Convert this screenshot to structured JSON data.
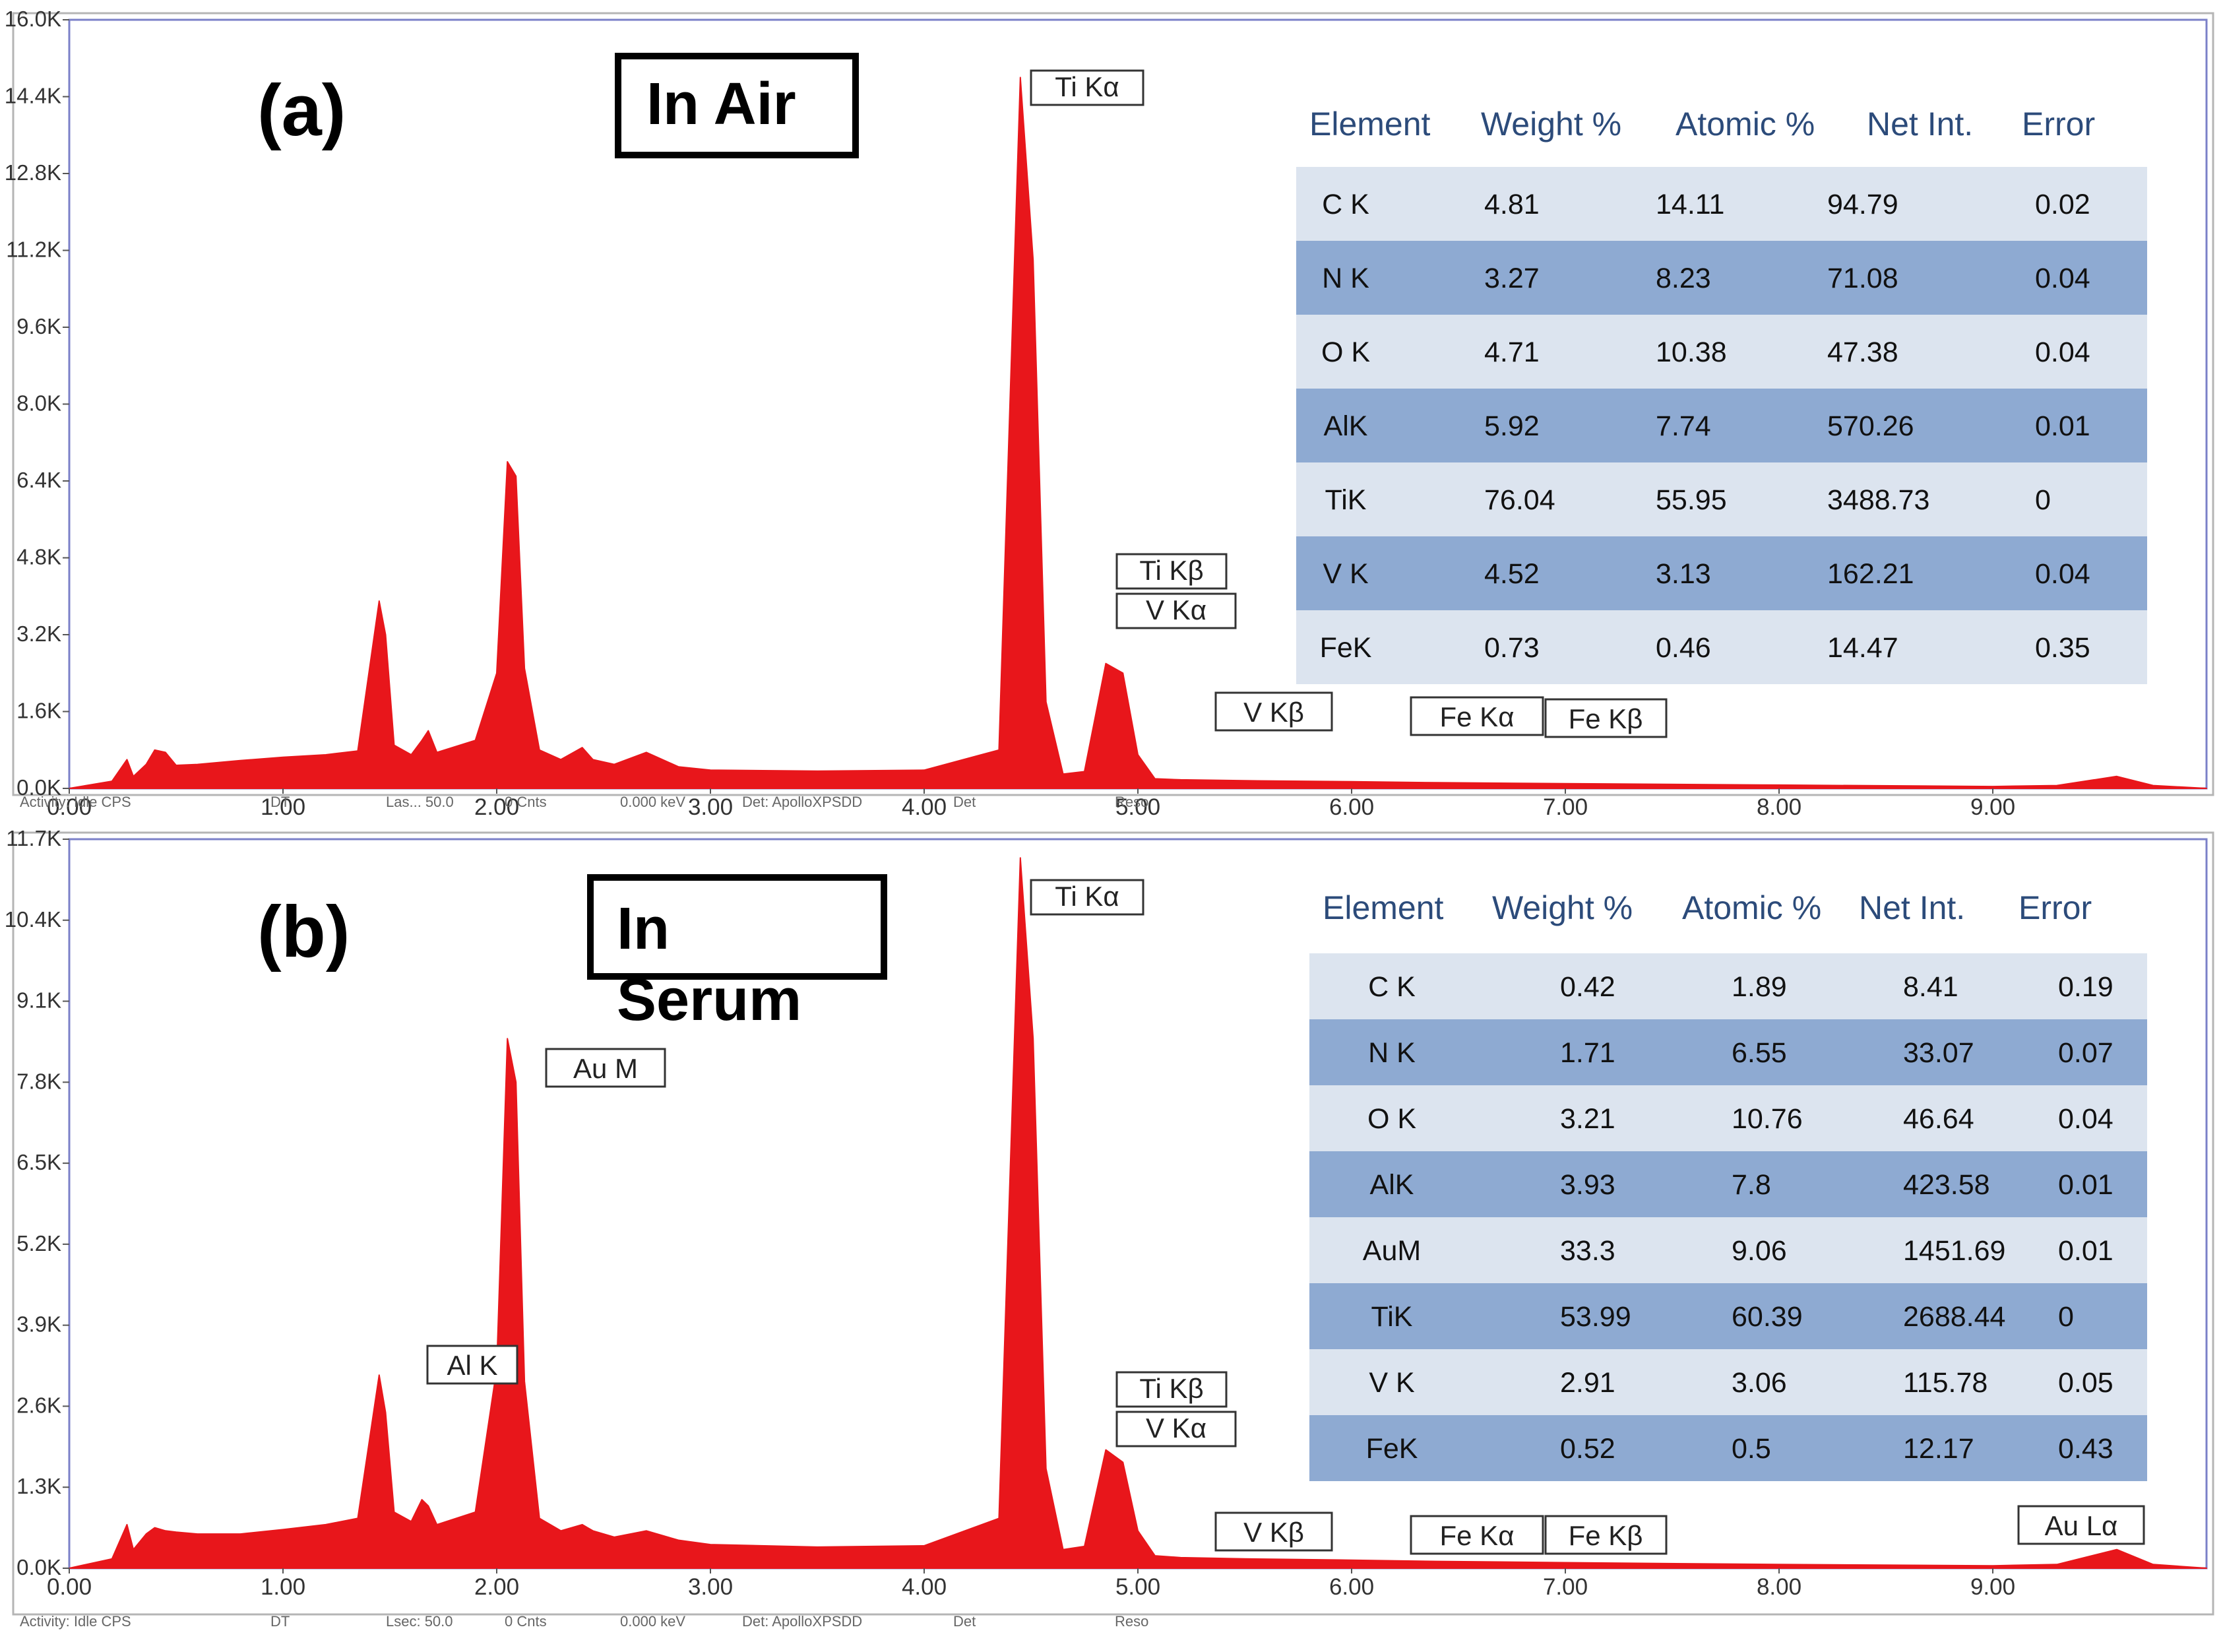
{
  "panels": [
    {
      "id": "a",
      "panel_label": "(a)",
      "condition_label": "In Air",
      "axis_ticks_y": [
        "0.0K",
        "1.6K",
        "3.2K",
        "4.8K",
        "6.4K",
        "8.0K",
        "9.6K",
        "11.2K",
        "12.8K",
        "14.4K",
        "16.0K"
      ],
      "axis_ticks_x": [
        "0.00",
        "1.00",
        "2.00",
        "3.00",
        "4.00",
        "5.00",
        "6.00",
        "7.00",
        "8.00",
        "9.00"
      ],
      "status_bar": [
        "Activity: Idle CPS",
        "DT",
        "Las... 50.0",
        "0 Cnts",
        "0.000 keV",
        "Det: ApolloXPSDD",
        "Det",
        "Reso"
      ],
      "peak_labels": [
        "Ti Kα",
        "Ti Kβ",
        "V  Kα",
        "V  Kβ",
        "Fe Kα",
        "Fe Kβ"
      ],
      "table": {
        "headers": [
          "Element",
          "Weight %",
          "Atomic %",
          "Net Int.",
          "Error"
        ],
        "rows": [
          [
            "C K",
            "4.81",
            "14.11",
            "94.79",
            "0.02"
          ],
          [
            "N K",
            "3.27",
            "8.23",
            "71.08",
            "0.04"
          ],
          [
            "O K",
            "4.71",
            "10.38",
            "47.38",
            "0.04"
          ],
          [
            "AlK",
            "5.92",
            "7.74",
            "570.26",
            "0.01"
          ],
          [
            "TiK",
            "76.04",
            "55.95",
            "3488.73",
            "0"
          ],
          [
            "V K",
            "4.52",
            "3.13",
            "162.21",
            "0.04"
          ],
          [
            "FeK",
            "0.73",
            "0.46",
            "14.47",
            "0.35"
          ]
        ]
      }
    },
    {
      "id": "b",
      "panel_label": "(b)",
      "condition_label": "In Serum",
      "axis_ticks_y": [
        "0.0K",
        "1.3K",
        "2.6K",
        "3.9K",
        "5.2K",
        "6.5K",
        "7.8K",
        "9.1K",
        "10.4K",
        "11.7K"
      ],
      "axis_ticks_x": [
        "0.00",
        "1.00",
        "2.00",
        "3.00",
        "4.00",
        "5.00",
        "6.00",
        "7.00",
        "8.00",
        "9.00"
      ],
      "status_bar": [
        "Activity: Idle CPS",
        "DT",
        "Lsec: 50.0",
        "0 Cnts",
        "0.000 keV",
        "Det: ApolloXPSDD",
        "Det",
        "Reso"
      ],
      "peak_labels": [
        "Ti Kα",
        "Au M",
        "Al K",
        "Ti Kβ",
        "V  Kα",
        "V  Kβ",
        "Fe Kα",
        "Fe Kβ",
        "Au Lα"
      ],
      "table": {
        "headers": [
          "Element",
          "Weight %",
          "Atomic %",
          "Net Int.",
          "Error"
        ],
        "rows": [
          [
            "C K",
            "0.42",
            "1.89",
            "8.41",
            "0.19"
          ],
          [
            "N K",
            "1.71",
            "6.55",
            "33.07",
            "0.07"
          ],
          [
            "O K",
            "3.21",
            "10.76",
            "46.64",
            "0.04"
          ],
          [
            "AlK",
            "3.93",
            "7.8",
            "423.58",
            "0.01"
          ],
          [
            "AuM",
            "33.3",
            "9.06",
            "1451.69",
            "0.01"
          ],
          [
            "TiK",
            "53.99",
            "60.39",
            "2688.44",
            "0"
          ],
          [
            "V K",
            "2.91",
            "3.06",
            "115.78",
            "0.05"
          ],
          [
            "FeK",
            "0.52",
            "0.5",
            "12.17",
            "0.43"
          ]
        ]
      }
    }
  ],
  "colors": {
    "spectrum": "#e8161b",
    "axis_frame": "#7b80c8",
    "row_light": "#dce4ef",
    "row_dark": "#8eaad2",
    "header_text": "#2c4b7a"
  },
  "chart_data": [
    {
      "type": "area",
      "x_unit": "keV",
      "y_unit": "counts",
      "xlim": [
        0,
        10
      ],
      "ylim": [
        0,
        16000
      ],
      "grid": false,
      "series": [
        {
          "x": [
            0.0,
            0.2,
            0.27,
            0.3,
            0.36,
            0.4,
            0.45,
            0.5,
            0.6,
            0.8,
            1.0,
            1.2,
            1.35,
            1.45,
            1.48,
            1.52,
            1.6,
            1.65,
            1.68,
            1.72,
            1.9,
            2.0,
            2.05,
            2.09,
            2.13,
            2.2,
            2.3,
            2.4,
            2.45,
            2.55,
            2.7,
            2.85,
            3.0,
            3.5,
            4.0,
            4.35,
            4.45,
            4.51,
            4.57,
            4.65,
            4.75,
            4.85,
            4.93,
            5.0,
            5.08,
            5.2,
            5.5,
            6.0,
            6.4,
            7.0,
            8.0,
            9.0,
            9.3,
            9.58,
            9.75,
            10.0
          ],
          "y": [
            0,
            150,
            600,
            250,
            500,
            800,
            750,
            480,
            500,
            580,
            650,
            700,
            780,
            3900,
            3200,
            900,
            700,
            1000,
            1200,
            750,
            1000,
            2400,
            6800,
            6500,
            2500,
            800,
            600,
            850,
            600,
            500,
            750,
            450,
            380,
            360,
            380,
            800,
            14800,
            11000,
            1800,
            300,
            350,
            2600,
            2400,
            700,
            200,
            180,
            160,
            140,
            120,
            100,
            70,
            40,
            60,
            250,
            60,
            0
          ]
        }
      ]
    },
    {
      "type": "area",
      "x_unit": "keV",
      "y_unit": "counts",
      "xlim": [
        0,
        10
      ],
      "ylim": [
        0,
        11700
      ],
      "grid": false,
      "series": [
        {
          "x": [
            0.0,
            0.2,
            0.27,
            0.3,
            0.36,
            0.4,
            0.45,
            0.5,
            0.6,
            0.8,
            1.0,
            1.2,
            1.35,
            1.45,
            1.48,
            1.52,
            1.6,
            1.65,
            1.68,
            1.72,
            1.9,
            2.0,
            2.05,
            2.09,
            2.13,
            2.2,
            2.3,
            2.4,
            2.45,
            2.55,
            2.7,
            2.85,
            3.0,
            3.5,
            4.0,
            4.35,
            4.45,
            4.51,
            4.57,
            4.65,
            4.75,
            4.85,
            4.93,
            5.0,
            5.08,
            5.2,
            5.5,
            6.0,
            6.4,
            7.0,
            8.0,
            9.0,
            9.3,
            9.58,
            9.75,
            10.0
          ],
          "y": [
            0,
            150,
            700,
            300,
            550,
            650,
            600,
            580,
            550,
            550,
            620,
            700,
            800,
            3100,
            2500,
            900,
            750,
            1100,
            1000,
            700,
            900,
            3200,
            8500,
            7800,
            3000,
            800,
            600,
            700,
            600,
            500,
            600,
            450,
            380,
            340,
            360,
            800,
            11400,
            8500,
            1600,
            300,
            350,
            1900,
            1700,
            600,
            200,
            170,
            150,
            130,
            110,
            90,
            60,
            40,
            60,
            300,
            60,
            0
          ]
        }
      ]
    }
  ]
}
